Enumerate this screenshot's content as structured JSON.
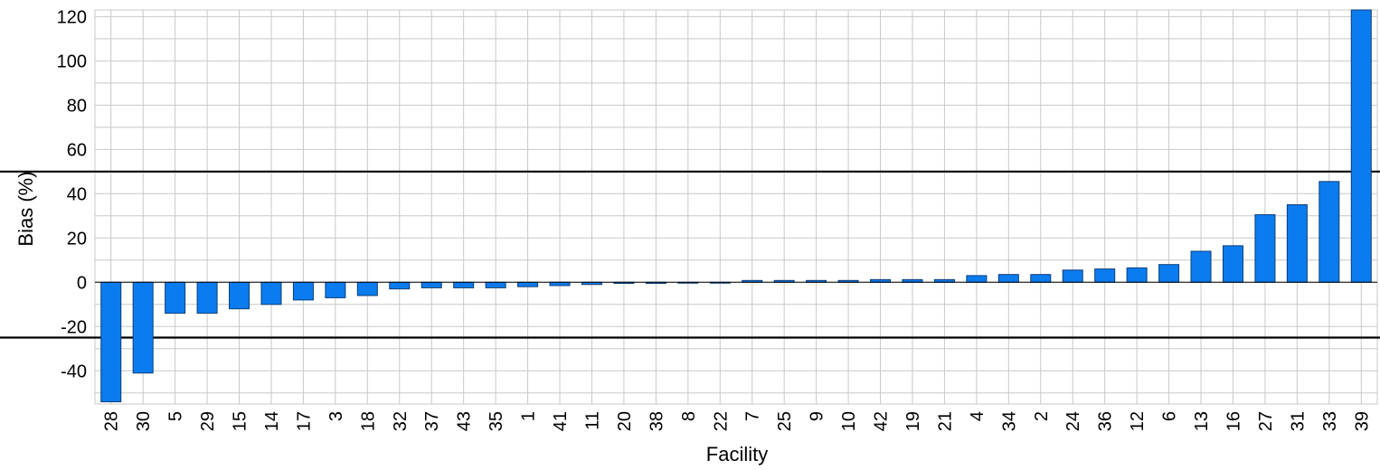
{
  "chart_data": {
    "type": "bar",
    "xlabel": "Facility",
    "ylabel": "Bias (%)",
    "ylim": [
      -55,
      123
    ],
    "yticks": [
      -40,
      -20,
      0,
      20,
      40,
      60,
      80,
      100,
      120
    ],
    "grid": true,
    "categories": [
      "28",
      "30",
      "5",
      "29",
      "15",
      "14",
      "17",
      "3",
      "18",
      "32",
      "37",
      "43",
      "35",
      "1",
      "41",
      "11",
      "20",
      "38",
      "8",
      "22",
      "7",
      "25",
      "9",
      "10",
      "42",
      "19",
      "21",
      "4",
      "34",
      "2",
      "24",
      "36",
      "12",
      "6",
      "13",
      "16",
      "27",
      "31",
      "33",
      "39"
    ],
    "values": [
      -54,
      -41,
      -14,
      -14,
      -12,
      -10,
      -8,
      -7,
      -6,
      -3,
      -2.5,
      -2.5,
      -2.5,
      -2,
      -1.5,
      -1,
      -0.5,
      -0.5,
      -0.3,
      -0.3,
      0.8,
      0.8,
      0.8,
      0.8,
      1.2,
      1.2,
      1.2,
      3,
      3.5,
      3.5,
      5.5,
      6,
      6.5,
      8,
      14,
      16.5,
      30.5,
      35,
      45.5,
      123
    ],
    "reference_lines": [
      50,
      -25
    ],
    "colors": {
      "bar_fill": "#0a7cf0",
      "bar_stroke": "#0a3d78",
      "grid": "#c8c8c8",
      "reference_line": "#000000"
    }
  }
}
